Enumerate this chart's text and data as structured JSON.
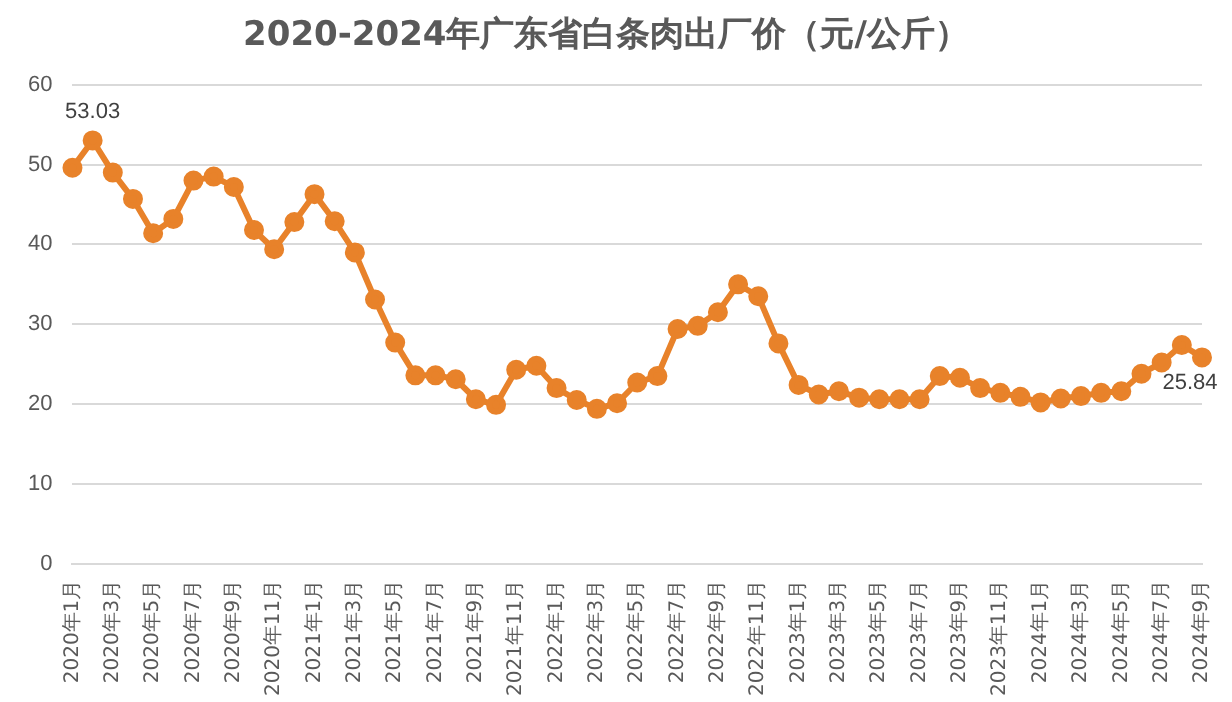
{
  "chart_data": {
    "type": "line",
    "title": "2020-2024年广东省白条肉出厂价（元/公斤）",
    "categories": [
      "2020年1月",
      null,
      "2020年3月",
      null,
      "2020年5月",
      null,
      "2020年7月",
      null,
      "2020年9月",
      null,
      "2020年11月",
      null,
      "2021年1月",
      null,
      "2021年3月",
      null,
      "2021年5月",
      null,
      "2021年7月",
      null,
      "2021年9月",
      null,
      "2021年11月",
      null,
      "2022年1月",
      null,
      "2022年3月",
      null,
      "2022年5月",
      null,
      "2022年7月",
      null,
      "2022年9月",
      null,
      "2022年11月",
      null,
      "2023年1月",
      null,
      "2023年3月",
      null,
      "2023年5月",
      null,
      "2023年7月",
      null,
      "2023年9月",
      null,
      "2023年11月",
      null,
      "2024年1月",
      null,
      "2024年3月",
      null,
      "2024年5月",
      null,
      "2024年7月",
      null,
      "2024年9月"
    ],
    "series": [
      {
        "color": "#e8822a",
        "values": [
          49.6,
          53.03,
          49.0,
          45.7,
          41.4,
          43.2,
          48.0,
          48.5,
          47.2,
          41.8,
          39.4,
          42.8,
          46.3,
          42.9,
          39.0,
          33.1,
          27.7,
          23.6,
          23.6,
          23.1,
          20.6,
          19.9,
          24.3,
          24.8,
          22.0,
          20.5,
          19.4,
          20.1,
          22.7,
          23.5,
          29.4,
          29.8,
          31.5,
          35.0,
          33.5,
          27.6,
          22.4,
          21.2,
          21.6,
          20.8,
          20.6,
          20.6,
          20.6,
          23.5,
          23.3,
          22.0,
          21.4,
          20.9,
          20.2,
          20.7,
          21.0,
          21.4,
          21.6,
          23.8,
          25.2,
          27.4,
          25.84
        ],
        "value_labels": [
          null,
          "53.03",
          null,
          null,
          null,
          null,
          null,
          null,
          null,
          null,
          null,
          null,
          null,
          null,
          null,
          null,
          null,
          null,
          null,
          null,
          null,
          null,
          null,
          null,
          null,
          null,
          null,
          null,
          null,
          null,
          null,
          null,
          null,
          null,
          null,
          null,
          null,
          null,
          null,
          null,
          null,
          null,
          null,
          null,
          null,
          null,
          null,
          null,
          null,
          null,
          null,
          null,
          null,
          null,
          null,
          null,
          "25.84"
        ]
      }
    ],
    "ylim": [
      0,
      60
    ],
    "yticks": [
      0,
      10,
      20,
      30,
      40,
      50,
      60
    ],
    "grid": "y",
    "legend": false,
    "marker": "circle",
    "line_style": "solid"
  }
}
